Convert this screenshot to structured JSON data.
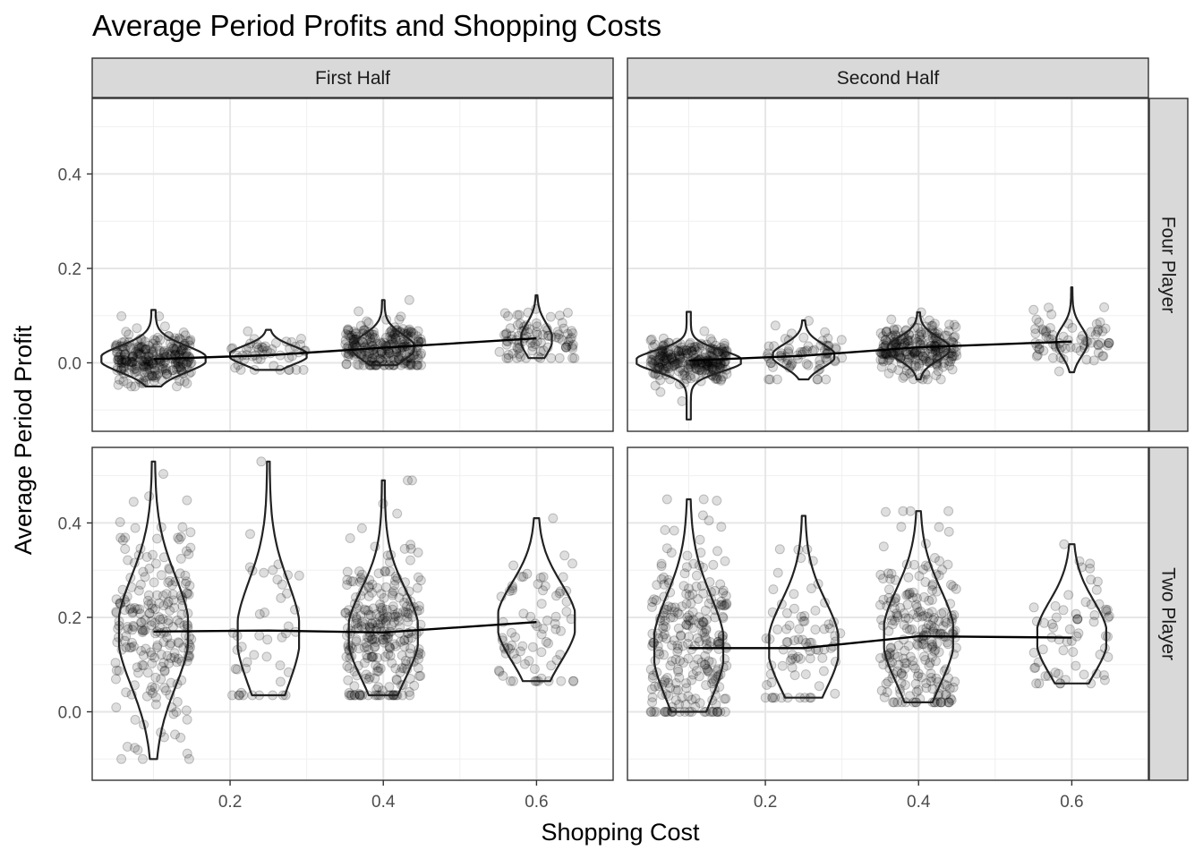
{
  "chart_data": {
    "type": "scatter",
    "title": "Average Period Profits and Shopping Costs",
    "xlabel": "Shopping Cost",
    "ylabel": "Average Period Profit",
    "facet_columns": [
      "First Half",
      "Second Half"
    ],
    "facet_rows": [
      "Four Player",
      "Two Player"
    ],
    "xlim": [
      0.02,
      0.7
    ],
    "x_ticks": [
      0.2,
      0.4,
      0.6
    ],
    "x_tick_labels": [
      "0.2",
      "0.4",
      "0.6"
    ],
    "y_ticks": [
      0.0,
      0.2,
      0.4
    ],
    "y_tick_labels": [
      "0.0",
      "0.2",
      "0.4"
    ],
    "ylim": [
      -0.145,
      0.56
    ],
    "grid": true,
    "layers": [
      "jittered points",
      "violin",
      "mean line"
    ],
    "panels": [
      {
        "column": "First Half",
        "row": "Four Player",
        "means": [
          {
            "x": 0.1,
            "y": 0.008
          },
          {
            "x": 0.25,
            "y": 0.016
          },
          {
            "x": 0.4,
            "y": 0.032
          },
          {
            "x": 0.6,
            "y": 0.052
          }
        ],
        "groups": [
          {
            "x": 0.1,
            "n": 260,
            "ymin": -0.05,
            "ymax": 0.112,
            "center": 0.008,
            "spread": 0.025,
            "violin_width": 0.068
          },
          {
            "x": 0.25,
            "n": 50,
            "ymin": -0.015,
            "ymax": 0.07,
            "center": 0.016,
            "spread": 0.018,
            "violin_width": 0.05
          },
          {
            "x": 0.4,
            "n": 240,
            "ymin": -0.005,
            "ymax": 0.133,
            "center": 0.032,
            "spread": 0.025,
            "violin_width": 0.04
          },
          {
            "x": 0.6,
            "n": 90,
            "ymin": 0.01,
            "ymax": 0.143,
            "center": 0.05,
            "spread": 0.03,
            "violin_width": 0.02
          }
        ]
      },
      {
        "column": "Second Half",
        "row": "Four Player",
        "means": [
          {
            "x": 0.1,
            "y": 0.005
          },
          {
            "x": 0.25,
            "y": 0.015
          },
          {
            "x": 0.4,
            "y": 0.033
          },
          {
            "x": 0.6,
            "y": 0.045
          }
        ],
        "groups": [
          {
            "x": 0.1,
            "n": 260,
            "ymin": -0.12,
            "ymax": 0.108,
            "center": 0.004,
            "spread": 0.02,
            "violin_width": 0.068
          },
          {
            "x": 0.25,
            "n": 70,
            "ymin": -0.035,
            "ymax": 0.09,
            "center": 0.015,
            "spread": 0.022,
            "violin_width": 0.04
          },
          {
            "x": 0.4,
            "n": 240,
            "ymin": -0.035,
            "ymax": 0.107,
            "center": 0.03,
            "spread": 0.022,
            "violin_width": 0.04
          },
          {
            "x": 0.6,
            "n": 70,
            "ymin": -0.02,
            "ymax": 0.16,
            "center": 0.045,
            "spread": 0.028,
            "violin_width": 0.02
          }
        ]
      },
      {
        "column": "First Half",
        "row": "Two Player",
        "means": [
          {
            "x": 0.1,
            "y": 0.17
          },
          {
            "x": 0.25,
            "y": 0.172
          },
          {
            "x": 0.4,
            "y": 0.168
          },
          {
            "x": 0.6,
            "y": 0.19
          }
        ],
        "groups": [
          {
            "x": 0.1,
            "n": 230,
            "ymin": -0.1,
            "ymax": 0.53,
            "center": 0.17,
            "spread": 0.105,
            "violin_width": 0.045
          },
          {
            "x": 0.25,
            "n": 45,
            "ymin": 0.035,
            "ymax": 0.53,
            "center": 0.165,
            "spread": 0.1,
            "violin_width": 0.04
          },
          {
            "x": 0.4,
            "n": 280,
            "ymin": 0.035,
            "ymax": 0.49,
            "center": 0.165,
            "spread": 0.085,
            "violin_width": 0.045
          },
          {
            "x": 0.6,
            "n": 75,
            "ymin": 0.065,
            "ymax": 0.41,
            "center": 0.19,
            "spread": 0.075,
            "violin_width": 0.05
          }
        ]
      },
      {
        "column": "Second Half",
        "row": "Two Player",
        "means": [
          {
            "x": 0.1,
            "y": 0.135
          },
          {
            "x": 0.25,
            "y": 0.135
          },
          {
            "x": 0.4,
            "y": 0.16
          },
          {
            "x": 0.6,
            "y": 0.157
          }
        ],
        "groups": [
          {
            "x": 0.1,
            "n": 260,
            "ymin": 0.0,
            "ymax": 0.45,
            "center": 0.135,
            "spread": 0.1,
            "violin_width": 0.045
          },
          {
            "x": 0.25,
            "n": 80,
            "ymin": 0.03,
            "ymax": 0.415,
            "center": 0.14,
            "spread": 0.085,
            "violin_width": 0.045
          },
          {
            "x": 0.4,
            "n": 240,
            "ymin": 0.02,
            "ymax": 0.425,
            "center": 0.16,
            "spread": 0.09,
            "violin_width": 0.045
          },
          {
            "x": 0.6,
            "n": 65,
            "ymin": 0.06,
            "ymax": 0.355,
            "center": 0.157,
            "spread": 0.07,
            "violin_width": 0.045
          }
        ]
      }
    ]
  }
}
